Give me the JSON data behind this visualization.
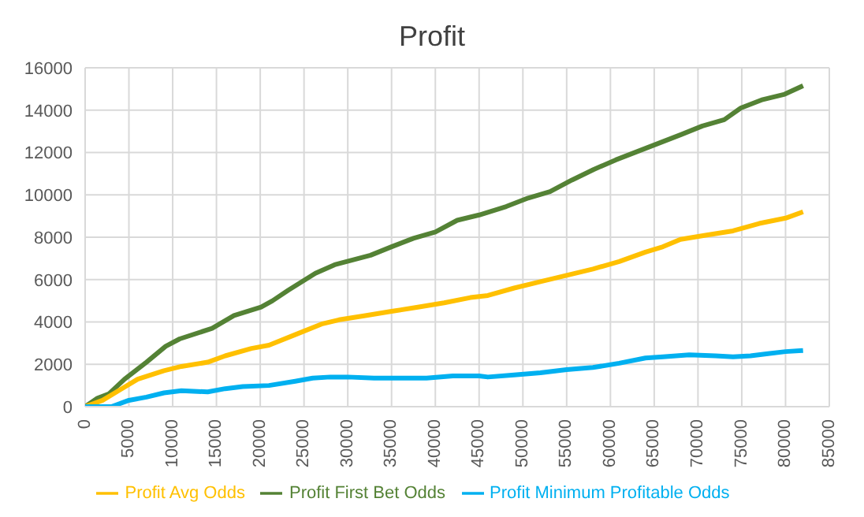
{
  "chart_data": {
    "type": "line",
    "title": "Profit",
    "xlim": [
      0,
      85000
    ],
    "xticks": [
      0,
      5000,
      10000,
      15000,
      20000,
      25000,
      30000,
      35000,
      40000,
      45000,
      50000,
      55000,
      60000,
      65000,
      70000,
      75000,
      80000,
      85000
    ],
    "ylim": [
      0,
      16000
    ],
    "yticks": [
      0,
      2000,
      4000,
      6000,
      8000,
      10000,
      12000,
      14000,
      16000
    ],
    "grid": true,
    "legend": "bottom",
    "marker": "none",
    "series": [
      {
        "name": "Profit First Bet Odds",
        "color": "#548235",
        "x": [
          0,
          1400,
          2700,
          4500,
          7000,
          9200,
          10800,
          14500,
          17000,
          20100,
          21400,
          23200,
          26300,
          28500,
          32600,
          35000,
          37500,
          40000,
          42500,
          45000,
          48100,
          50600,
          53100,
          55600,
          58100,
          60600,
          63100,
          65600,
          68100,
          70500,
          73000,
          74900,
          77400,
          79900,
          82000
        ],
        "values": [
          0,
          400,
          600,
          1300,
          2100,
          2850,
          3200,
          3700,
          4300,
          4700,
          5000,
          5500,
          6300,
          6700,
          7150,
          7550,
          7950,
          8250,
          8800,
          9050,
          9450,
          9850,
          10150,
          10700,
          11200,
          11650,
          12050,
          12450,
          12850,
          13250,
          13550,
          14100,
          14500,
          14750,
          15150
        ]
      },
      {
        "name": "Profit Avg Odds",
        "color": "#ffc000",
        "x": [
          0,
          2000,
          4000,
          6000,
          9000,
          11000,
          14000,
          16000,
          19000,
          21000,
          24000,
          27000,
          29000,
          32000,
          35000,
          38000,
          41000,
          44000,
          46000,
          49000,
          52000,
          55000,
          58000,
          61000,
          64000,
          66000,
          68000,
          71000,
          74000,
          77000,
          80000,
          82000
        ],
        "values": [
          0,
          300,
          800,
          1300,
          1700,
          1900,
          2100,
          2400,
          2750,
          2900,
          3400,
          3900,
          4100,
          4300,
          4500,
          4700,
          4900,
          5150,
          5250,
          5600,
          5900,
          6200,
          6500,
          6850,
          7300,
          7550,
          7900,
          8100,
          8300,
          8650,
          8900,
          9200
        ]
      },
      {
        "name": "Profit Minimum Profitable Odds",
        "color": "#00b0f0",
        "x": [
          0,
          3000,
          5000,
          7000,
          9000,
          11000,
          14000,
          16000,
          18000,
          21000,
          24000,
          26000,
          28000,
          30000,
          33000,
          36000,
          39000,
          42000,
          45000,
          46000,
          49000,
          52000,
          55000,
          58000,
          61000,
          64000,
          66000,
          69000,
          72000,
          74000,
          76000,
          78000,
          80000,
          82000
        ],
        "values": [
          0,
          0,
          300,
          450,
          650,
          750,
          700,
          850,
          950,
          1000,
          1200,
          1350,
          1400,
          1400,
          1350,
          1350,
          1350,
          1450,
          1450,
          1400,
          1500,
          1600,
          1750,
          1850,
          2050,
          2300,
          2350,
          2450,
          2400,
          2350,
          2400,
          2500,
          2600,
          2650
        ]
      }
    ]
  }
}
